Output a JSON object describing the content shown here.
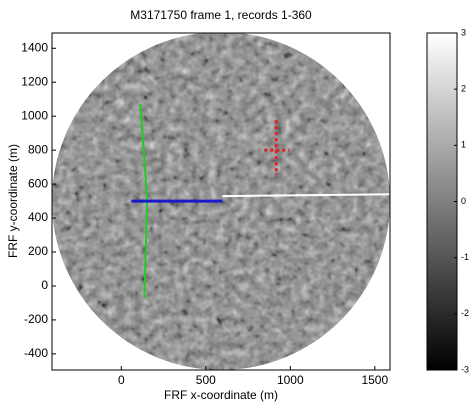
{
  "chart_data": {
    "type": "image",
    "title": "M3171750  frame 1, records 1-360",
    "xlabel": "FRF x-coordinate (m)",
    "ylabel": "FRF y-coordinate (m)",
    "xlim": [
      -410,
      1590
    ],
    "xticks": [
      0,
      500,
      1000,
      1500
    ],
    "ylim": [
      -495,
      1490
    ],
    "yticks": [
      -400,
      -200,
      0,
      200,
      400,
      600,
      800,
      1000,
      1200,
      1400
    ],
    "clim": [
      -3,
      3
    ],
    "cticks": [
      3,
      2,
      1,
      0,
      -1,
      -2,
      -3
    ],
    "series": [
      {
        "color": "#22cc22",
        "x": [
          112,
          154,
          136
        ],
        "y": [
          1071,
          506,
          -71
        ]
      },
      {
        "color": "#1a1acc",
        "x": [
          59,
          598
        ],
        "y": [
          500,
          500
        ]
      },
      {
        "color": "#ffffff",
        "x": [
          598,
          1586
        ],
        "y": [
          529,
          540
        ]
      },
      {
        "color": "#e02020",
        "x": [
          917,
          917
        ],
        "y": [
          976,
          653
        ]
      },
      {
        "color": "#e02020",
        "x": [
          846,
          994
        ],
        "y": [
          800,
          800
        ]
      }
    ]
  }
}
